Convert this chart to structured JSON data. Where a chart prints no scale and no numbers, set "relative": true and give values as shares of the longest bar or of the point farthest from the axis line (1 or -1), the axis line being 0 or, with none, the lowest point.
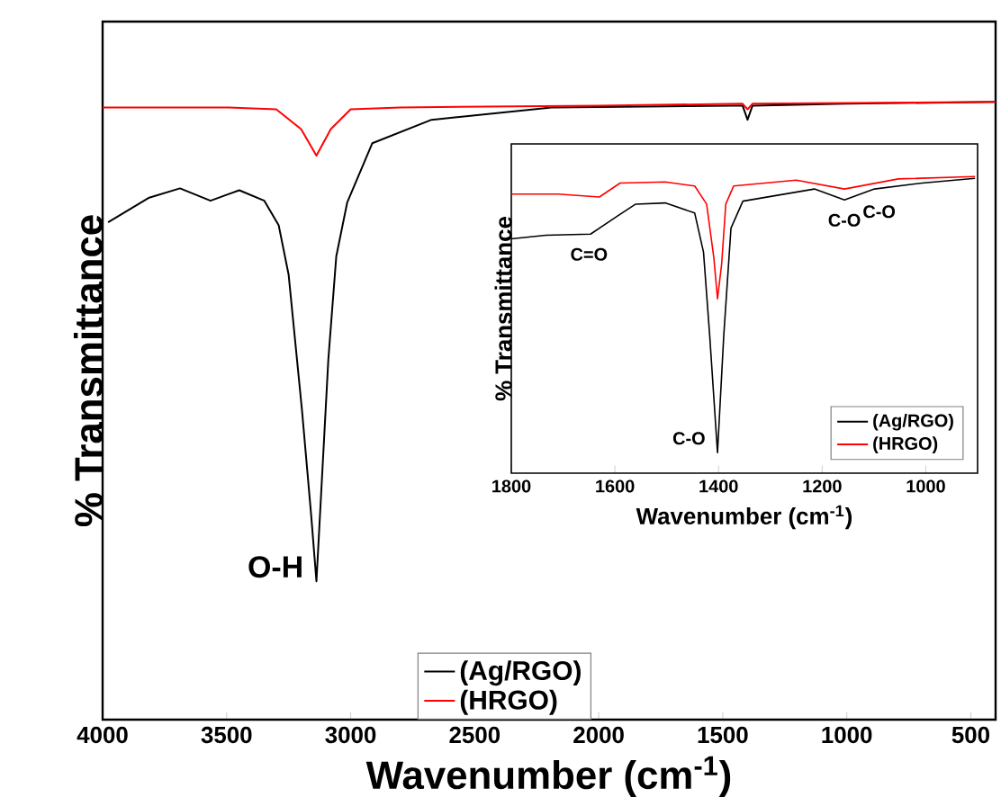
{
  "chart_data": [
    {
      "type": "line",
      "relative": true,
      "xlabel": "Wavenumber (cm$^{-1}$)",
      "ylabel": "% Transmittance",
      "xlim": [
        4000,
        400
      ],
      "xticks": [
        4000,
        3500,
        3000,
        2500,
        2000,
        1500,
        1000,
        500
      ],
      "legend": "bottom",
      "annotations": [
        {
          "text": "O-H",
          "x": 3140,
          "y": 0.224
        }
      ],
      "series": [
        {
          "name": "(Ag/RGO)",
          "color": "#000000",
          "x": [
            3978,
            3812,
            3688,
            3565,
            3449,
            3348,
            3290,
            3250,
            3196,
            3159,
            3138,
            3116,
            3090,
            3058,
            3014,
            2913,
            2674,
            2190,
            1464,
            1420,
            1400,
            1380,
            1000,
            400
          ],
          "values": [
            0.805,
            0.845,
            0.86,
            0.84,
            0.857,
            0.84,
            0.8,
            0.72,
            0.5,
            0.33,
            0.224,
            0.388,
            0.583,
            0.75,
            0.837,
            0.933,
            0.971,
            0.991,
            0.994,
            0.994,
            0.971,
            0.994,
            0.997,
            1.0
          ]
        },
        {
          "name": "(HRGO)",
          "color": "#ff0000",
          "x": [
            4000,
            3500,
            3300,
            3200,
            3138,
            3080,
            3000,
            2800,
            2000,
            1420,
            1400,
            1380,
            400
          ],
          "values": [
            0.991,
            0.991,
            0.988,
            0.956,
            0.913,
            0.956,
            0.988,
            0.991,
            0.994,
            0.997,
            0.988,
            0.997,
            1.0
          ]
        }
      ]
    },
    {
      "type": "line",
      "relative": true,
      "xlabel": "Wavenumber (cm$^{-1}$)",
      "ylabel": "% Transmittance",
      "xlim": [
        1800,
        900
      ],
      "xticks": [
        1800,
        1600,
        1400,
        1200,
        1000
      ],
      "legend": "bottom right",
      "annotations": [
        {
          "text": "C=O",
          "x": 1650,
          "y": 0.806
        },
        {
          "text": "C-O",
          "x": 1402,
          "y": 0.069
        },
        {
          "text": "C-O",
          "x": 1157,
          "y": 0.921
        },
        {
          "text": "C-O",
          "x": 1090,
          "y": 0.95
        }
      ],
      "series": [
        {
          "name": "(Ag/RGO)",
          "color": "#000000",
          "x": [
            1800,
            1733,
            1647,
            1595,
            1560,
            1503,
            1446,
            1429,
            1417,
            1402,
            1390,
            1376,
            1353,
            1215,
            1157,
            1099,
            1007,
            905
          ],
          "values": [
            0.79,
            0.802,
            0.806,
            0.867,
            0.907,
            0.911,
            0.877,
            0.745,
            0.462,
            0.069,
            0.462,
            0.826,
            0.917,
            0.958,
            0.921,
            0.958,
            0.978,
            0.994
          ]
        },
        {
          "name": "(HRGO)",
          "color": "#ff0000",
          "x": [
            1800,
            1710,
            1630,
            1590,
            1503,
            1446,
            1423,
            1409,
            1402,
            1394,
            1386,
            1371,
            1250,
            1157,
            1053,
            905
          ],
          "values": [
            0.941,
            0.941,
            0.931,
            0.978,
            0.982,
            0.968,
            0.907,
            0.725,
            0.588,
            0.705,
            0.907,
            0.968,
            0.988,
            0.958,
            0.992,
            1.0
          ]
        }
      ]
    }
  ]
}
